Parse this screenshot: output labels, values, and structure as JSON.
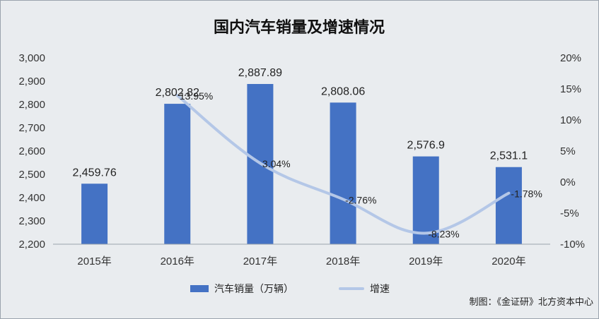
{
  "chart_data": {
    "type": "bar",
    "title": "国内汽车销量及增速情况",
    "categories": [
      "2015年",
      "2016年",
      "2017年",
      "2018年",
      "2019年",
      "2020年"
    ],
    "series": [
      {
        "name": "汽车销量（万辆）",
        "type": "bar",
        "axis": "left",
        "color": "#4472c4",
        "values": [
          2459.76,
          2802.82,
          2887.89,
          2808.06,
          2576.9,
          2531.1
        ],
        "labels": [
          "2,459.76",
          "2,802.82",
          "2,887.89",
          "2,808.06",
          "2,576.9",
          "2,531.1"
        ]
      },
      {
        "name": "增速",
        "type": "line",
        "axis": "right",
        "color": "#b4c7e7",
        "values": [
          null,
          13.95,
          3.04,
          -2.76,
          -8.23,
          -1.78
        ],
        "labels": [
          "",
          "13.95%",
          "3.04%",
          "-2.76%",
          "-8.23%",
          "-1.78%"
        ]
      }
    ],
    "y_left": {
      "ylim": [
        2200,
        3000
      ],
      "ticks": [
        2200,
        2300,
        2400,
        2500,
        2600,
        2700,
        2800,
        2900,
        3000
      ],
      "tick_labels": [
        "2,200",
        "2,300",
        "2,400",
        "2,500",
        "2,600",
        "2,700",
        "2,800",
        "2,900",
        "3,000"
      ]
    },
    "y_right": {
      "ylim": [
        -10,
        20
      ],
      "ticks": [
        -10,
        -5,
        0,
        5,
        10,
        15,
        20
      ],
      "tick_labels": [
        "-10%",
        "-5%",
        "0%",
        "5%",
        "10%",
        "15%",
        "20%"
      ]
    },
    "grid": false,
    "legend_position": "bottom",
    "background": "#e9ecef",
    "source": "制图：《金证研》北方资本中心"
  }
}
